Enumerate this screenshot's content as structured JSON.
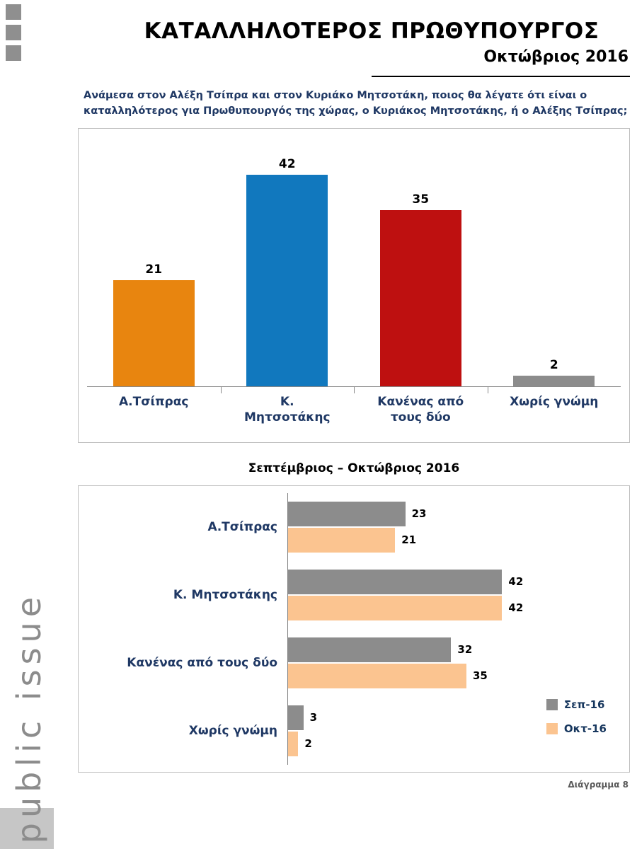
{
  "page": {
    "title": "ΚΑΤΑΛΛΗΛΟΤΕΡΟΣ ΠΡΩΘΥΠΟΥΡΓΟΣ",
    "subtitle": "Οκτώβριος 2016",
    "question": "Ανάμεσα στον Αλέξη Τσίπρα και στον Κυριάκο Μητσοτάκη, ποιος θα λέγατε ότι είναι ο καταλληλότερος για Πρωθυπουργός της χώρας, ο Κυριάκος Μητσοτάκης, ή ο Αλέξης Τσίπρας;",
    "footer_note": "Διάγραμμα 8",
    "logo_text": "public issue"
  },
  "colors": {
    "orange": "#E8850F",
    "blue": "#1178BE",
    "red": "#BE1010",
    "gray": "#8C8C8C",
    "peach": "#FBC490",
    "axis": "#7F7F7F",
    "label_navy": "#1F3864"
  },
  "chart_data": [
    {
      "type": "bar",
      "title": "Οκτώβριος 2016",
      "categories": [
        "Α.Τσίπρας",
        "Κ. Μητσοτάκης",
        "Κανένας από τους δύο",
        "Χωρίς γνώμη"
      ],
      "values": [
        21,
        42,
        35,
        2
      ],
      "bar_colors": [
        "#E8850F",
        "#1178BE",
        "#BE1010",
        "#8C8C8C"
      ],
      "ylim": [
        0,
        45
      ],
      "grid": false,
      "data_labels": true,
      "legend_position": "none"
    },
    {
      "type": "bar-horizontal",
      "title": "Σεπτέμβριος – Οκτώβριος 2016",
      "categories": [
        "Α.Τσίπρας",
        "Κ. Μητσοτάκης",
        "Κανένας από τους δύο",
        "Χωρίς γνώμη"
      ],
      "series": [
        {
          "name": "Σεπ-16",
          "values": [
            23,
            42,
            32,
            3
          ],
          "color": "#8C8C8C"
        },
        {
          "name": "Οκτ-16",
          "values": [
            21,
            42,
            35,
            2
          ],
          "color": "#FBC490"
        }
      ],
      "xlim": [
        0,
        45
      ],
      "grid": false,
      "data_labels": true,
      "legend_position": "bottom-right"
    }
  ]
}
